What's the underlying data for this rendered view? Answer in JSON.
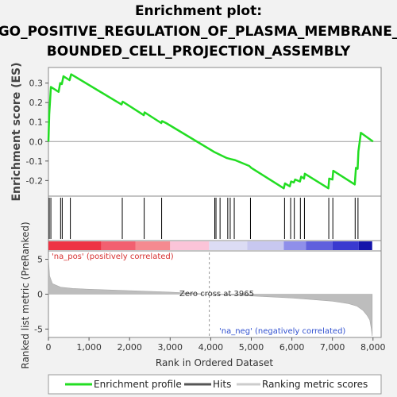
{
  "chart_data": {
    "type": "line",
    "title_lines": [
      "Enrichment plot:",
      "GO_POSITIVE_REGULATION_OF_PLASMA_MEMBRANE_",
      "BOUNDED_CELL_PROJECTION_ASSEMBLY"
    ],
    "es_panel": {
      "ylabel": "Enrichment score (ES)",
      "ylim": [
        -0.28,
        0.38
      ],
      "yticks": [
        -0.2,
        -0.1,
        0.0,
        0.1,
        0.2,
        0.3
      ],
      "ytick_labels": [
        "-0.2",
        "-0.1",
        "0.0",
        "0.1",
        "0.2",
        "0.3"
      ],
      "series": {
        "color": "#22dd22",
        "x": [
          0,
          20,
          60,
          250,
          290,
          330,
          370,
          520,
          560,
          1800,
          1830,
          2350,
          2370,
          2780,
          2800,
          2900,
          4100,
          4150,
          4250,
          4400,
          4500,
          4600,
          4950,
          5000,
          5800,
          5830,
          5950,
          5980,
          6050,
          6080,
          6200,
          6230,
          6300,
          6320,
          6900,
          6920,
          7000,
          7020,
          7550,
          7580,
          7620,
          7640,
          7700,
          8000
        ],
        "y": [
          0.0,
          0.14,
          0.28,
          0.255,
          0.3,
          0.295,
          0.335,
          0.315,
          0.345,
          0.19,
          0.205,
          0.135,
          0.15,
          0.095,
          0.105,
          0.095,
          -0.055,
          -0.06,
          -0.07,
          -0.085,
          -0.09,
          -0.095,
          -0.125,
          -0.135,
          -0.24,
          -0.215,
          -0.23,
          -0.205,
          -0.21,
          -0.195,
          -0.205,
          -0.18,
          -0.19,
          -0.165,
          -0.24,
          -0.19,
          -0.195,
          -0.15,
          -0.22,
          -0.135,
          -0.14,
          -0.05,
          0.045,
          0.0
        ]
      }
    },
    "hits": [
      20,
      60,
      300,
      340,
      540,
      1820,
      2360,
      2790,
      4100,
      4130,
      4230,
      4420,
      4480,
      4580,
      4980,
      5820,
      5970,
      6060,
      6210,
      6310,
      6910,
      7010,
      7560,
      7630
    ],
    "rank_bar": {
      "segments": [
        {
          "from": 0,
          "to": 1300,
          "color": "#ee3344"
        },
        {
          "from": 1300,
          "to": 2150,
          "color": "#f26070"
        },
        {
          "from": 2150,
          "to": 3000,
          "color": "#f58a90"
        },
        {
          "from": 3000,
          "to": 3960,
          "color": "#fbc4d8"
        },
        {
          "from": 3960,
          "to": 4900,
          "color": "#dcdcf4"
        },
        {
          "from": 4900,
          "to": 5800,
          "color": "#c8c8f0"
        },
        {
          "from": 5800,
          "to": 6350,
          "color": "#8f8fea"
        },
        {
          "from": 6350,
          "to": 7000,
          "color": "#6060dd"
        },
        {
          "from": 7000,
          "to": 7650,
          "color": "#3a3ad0"
        },
        {
          "from": 7650,
          "to": 7980,
          "color": "#1414aa"
        }
      ]
    },
    "metric_panel": {
      "ylabel": "Ranked list metric (PreRanked)",
      "ylim": [
        -6.2,
        6.2
      ],
      "yticks": [
        -5,
        0,
        5
      ],
      "ytick_labels": [
        "-5",
        "0",
        "5"
      ],
      "profile": {
        "x": [
          0,
          30,
          100,
          300,
          600,
          1000,
          2000,
          3000,
          3965,
          5000,
          6000,
          7000,
          7400,
          7600,
          7750,
          7850,
          7920,
          7960,
          7980
        ],
        "y": [
          5.2,
          2.6,
          1.5,
          1.0,
          0.82,
          0.7,
          0.5,
          0.3,
          0.0,
          -0.25,
          -0.55,
          -1.0,
          -1.35,
          -1.7,
          -2.3,
          -3.0,
          -3.7,
          -5.0,
          -6.0
        ]
      },
      "zero_cross_label": "Zero cross at 3965",
      "zero_cross": 3965,
      "pos_label": "'na_pos' (positively correlated)",
      "neg_label": "'na_neg' (negatively correlated)"
    },
    "x_axis": {
      "xlabel": "Rank in Ordered Dataset",
      "xlim": [
        0,
        8200
      ],
      "xticks": [
        0,
        1000,
        2000,
        3000,
        4000,
        5000,
        6000,
        7000,
        8000
      ],
      "xtick_labels": [
        "0",
        "1,000",
        "2,000",
        "3,000",
        "4,000",
        "5,000",
        "6,000",
        "7,000",
        "8,000"
      ]
    },
    "legend": [
      {
        "label": "Enrichment profile",
        "color": "#22dd22"
      },
      {
        "label": "Hits",
        "color": "#555555"
      },
      {
        "label": "Ranking metric scores",
        "color": "#cccccc"
      }
    ]
  }
}
